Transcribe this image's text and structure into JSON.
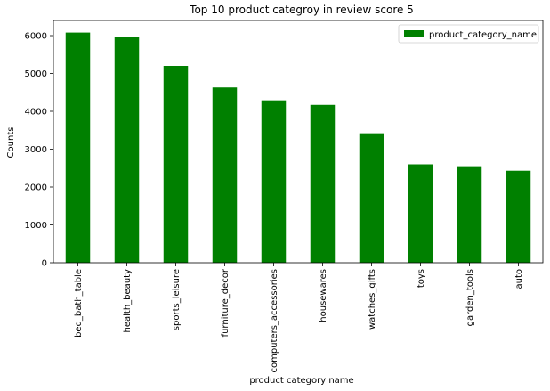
{
  "chart_data": {
    "type": "bar",
    "title": "Top 10 product categroy in review score 5",
    "xlabel": "product category name",
    "ylabel": "Counts",
    "categories": [
      "bed_bath_table",
      "health_beauty",
      "sports_leisure",
      "furniture_decor",
      "computers_accessories",
      "housewares",
      "watches_gifts",
      "toys",
      "garden_tools",
      "auto"
    ],
    "series": [
      {
        "name": "product_category_name",
        "color": "#008000",
        "values": [
          6080,
          5960,
          5200,
          4630,
          4290,
          4170,
          3420,
          2600,
          2550,
          2430
        ]
      }
    ],
    "ylim": [
      0,
      6400
    ],
    "yticks": [
      0,
      1000,
      2000,
      3000,
      4000,
      5000,
      6000
    ],
    "grid": false,
    "legend_position": "top-right"
  }
}
